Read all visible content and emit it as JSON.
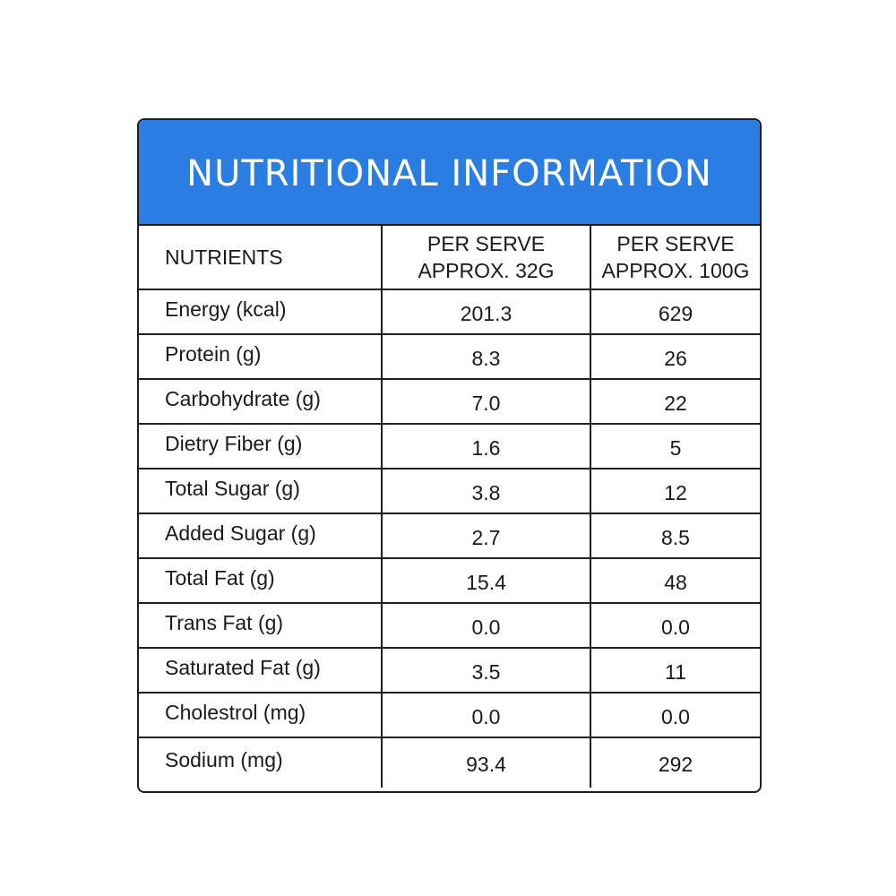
{
  "title": "NUTRITIONAL INFORMATION",
  "colors": {
    "header_bg": "#2a7de1",
    "border": "#1f1f1f",
    "header_text": "#ffffff"
  },
  "columns": {
    "nutrient": "NUTRIENTS",
    "per32": [
      "PER SERVE",
      "APPROX. 32G"
    ],
    "per100": [
      "PER SERVE",
      "APPROX. 100G"
    ]
  },
  "rows": [
    {
      "name": "Energy (kcal)",
      "per32": "201.3",
      "per100": "629"
    },
    {
      "name": "Protein (g)",
      "per32": "8.3",
      "per100": "26"
    },
    {
      "name": "Carbohydrate (g)",
      "per32": "7.0",
      "per100": "22"
    },
    {
      "name": "Dietry Fiber (g)",
      "per32": "1.6",
      "per100": "5"
    },
    {
      "name": "Total Sugar (g)",
      "per32": "3.8",
      "per100": "12"
    },
    {
      "name": "Added Sugar (g)",
      "per32": "2.7",
      "per100": "8.5"
    },
    {
      "name": "Total Fat (g)",
      "per32": "15.4",
      "per100": "48"
    },
    {
      "name": "Trans Fat (g)",
      "per32": "0.0",
      "per100": "0.0"
    },
    {
      "name": "Saturated Fat (g)",
      "per32": "3.5",
      "per100": "11"
    },
    {
      "name": "Cholestrol (mg)",
      "per32": "0.0",
      "per100": "0.0"
    },
    {
      "name": "Sodium (mg)",
      "per32": "93.4",
      "per100": "292"
    }
  ]
}
